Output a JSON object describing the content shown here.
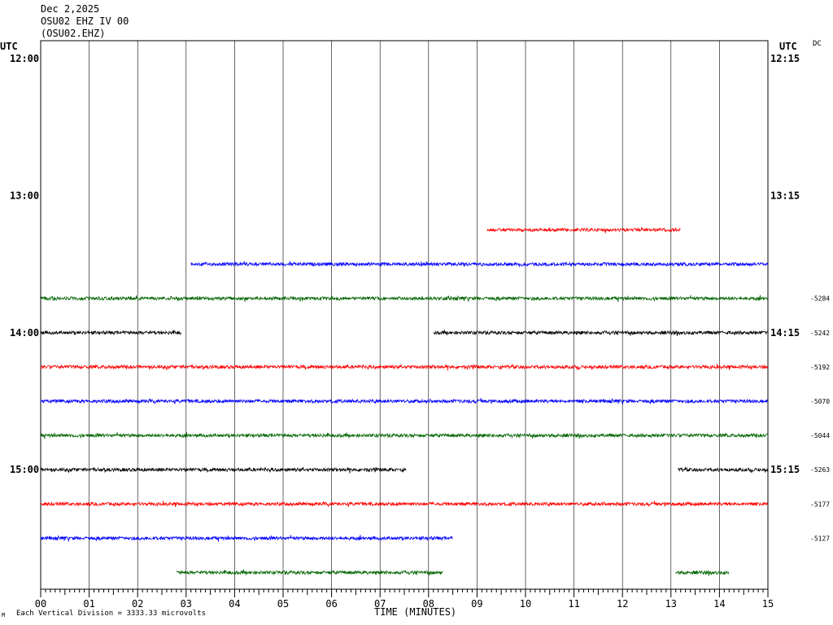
{
  "header": {
    "date": "Dec 2,2025",
    "station": "OSU02 EHZ IV 00",
    "channel": "(OSU02.EHZ)"
  },
  "left_axis_label": "UTC",
  "right_axis_label": "UTC",
  "dc_label": "DC",
  "footer": {
    "xlabel": "TIME (MINUTES)",
    "scale_note": "Each Vertical Division = 3333.33 microvolts",
    "mark": "M"
  },
  "chart_data": {
    "type": "line",
    "title": "",
    "xlabel": "TIME (MINUTES)",
    "xlim": [
      0,
      15
    ],
    "x_ticks": [
      "00",
      "01",
      "02",
      "03",
      "04",
      "05",
      "06",
      "07",
      "08",
      "09",
      "10",
      "11",
      "12",
      "13",
      "14",
      "15"
    ],
    "left_time_labels": [
      "12:00",
      "13:00",
      "14:00",
      "15:00"
    ],
    "right_time_labels": [
      "12:15",
      "13:15",
      "14:15",
      "15:15"
    ],
    "rows_count": 16,
    "trace_colors": [
      "#000000",
      "#ff0000",
      "#0000ff",
      "#006400"
    ],
    "traces": [
      {
        "row": 5,
        "color": "#ff0000",
        "segments": [
          [
            9.2,
            13.2
          ]
        ]
      },
      {
        "row": 6,
        "color": "#0000ff",
        "segments": [
          [
            3.1,
            15.0
          ]
        ]
      },
      {
        "row": 7,
        "color": "#006400",
        "segments": [
          [
            0.0,
            15.0
          ]
        ],
        "dc": "-5284"
      },
      {
        "row": 8,
        "color": "#000000",
        "segments": [
          [
            0.0,
            2.9
          ],
          [
            8.1,
            15.0
          ]
        ],
        "dc": "-5242"
      },
      {
        "row": 9,
        "color": "#ff0000",
        "segments": [
          [
            0.0,
            15.0
          ]
        ],
        "dc": "-5192"
      },
      {
        "row": 10,
        "color": "#0000ff",
        "segments": [
          [
            0.0,
            15.0
          ]
        ],
        "dc": "-5070"
      },
      {
        "row": 11,
        "color": "#006400",
        "segments": [
          [
            0.0,
            15.0
          ]
        ],
        "dc": "-5044"
      },
      {
        "row": 12,
        "color": "#000000",
        "segments": [
          [
            0.0,
            7.55
          ],
          [
            13.15,
            15.0
          ]
        ],
        "dc": "-5263"
      },
      {
        "row": 13,
        "color": "#ff0000",
        "segments": [
          [
            0.0,
            15.0
          ]
        ],
        "dc": "-5177"
      },
      {
        "row": 14,
        "color": "#0000ff",
        "segments": [
          [
            0.0,
            8.5
          ]
        ],
        "dc": "-5127"
      },
      {
        "row": 15,
        "color": "#006400",
        "segments": [
          [
            2.8,
            8.3
          ],
          [
            13.1,
            14.2
          ]
        ]
      }
    ]
  }
}
